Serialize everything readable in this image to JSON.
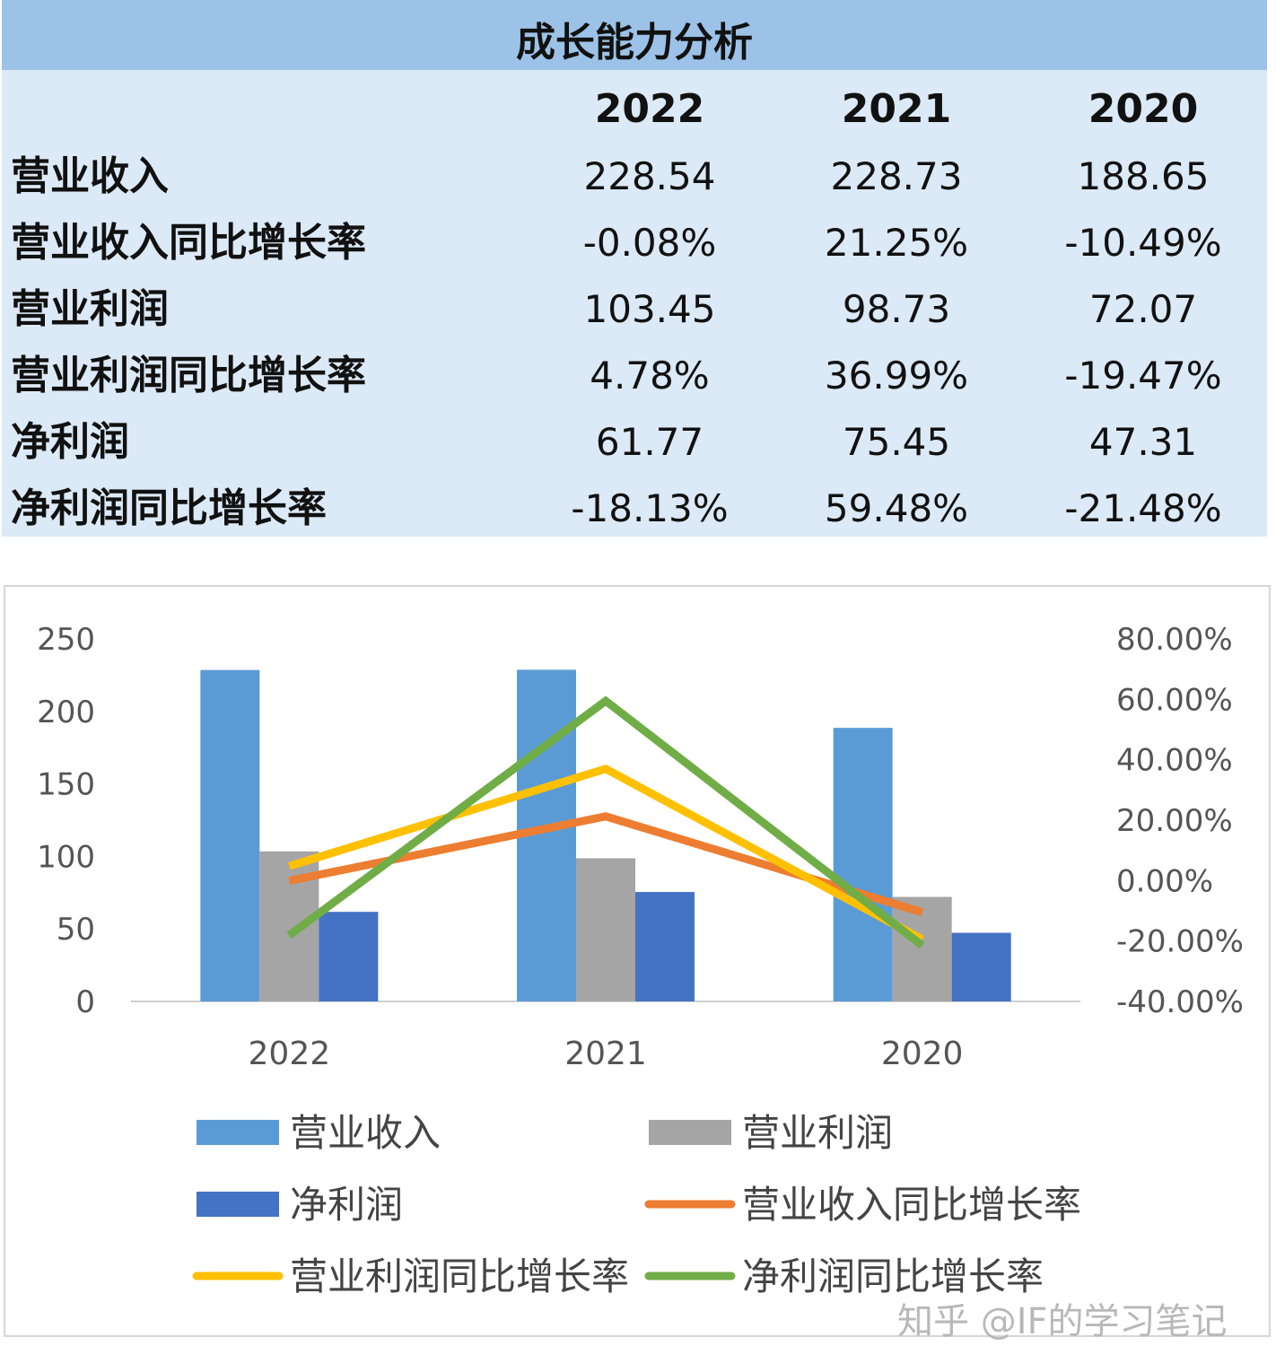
{
  "table": {
    "title": "成长能力分析",
    "years": [
      "2022",
      "2021",
      "2020"
    ],
    "rows": [
      {
        "label": "营业收入",
        "values": [
          "228.54",
          "228.73",
          "188.65"
        ]
      },
      {
        "label": "营业收入同比增长率",
        "values": [
          "-0.08%",
          "21.25%",
          "-10.49%"
        ]
      },
      {
        "label": "营业利润",
        "values": [
          "103.45",
          "98.73",
          "72.07"
        ]
      },
      {
        "label": "营业利润同比增长率",
        "values": [
          "4.78%",
          "36.99%",
          "-19.47%"
        ]
      },
      {
        "label": "净利润",
        "values": [
          "61.77",
          "75.45",
          "47.31"
        ]
      },
      {
        "label": "净利润同比增长率",
        "values": [
          "-18.13%",
          "59.48%",
          "-21.48%"
        ]
      }
    ]
  },
  "chart_data": {
    "type": "bar",
    "categories": [
      "2022",
      "2021",
      "2020"
    ],
    "ylim": [
      0,
      250
    ],
    "yticks": [
      "250",
      "200",
      "150",
      "100",
      "50",
      "0"
    ],
    "y2lim": [
      -40,
      80
    ],
    "y2ticks": [
      "80.00%",
      "60.00%",
      "40.00%",
      "20.00%",
      "0.00%",
      "-20.00%",
      "-40.00%"
    ],
    "grid": false,
    "legend_position": "bottom",
    "bar_series": [
      {
        "name": "营业收入",
        "values": [
          228.54,
          228.73,
          188.65
        ],
        "color": "#5b9bd5"
      },
      {
        "name": "营业利润",
        "values": [
          103.45,
          98.73,
          72.07
        ],
        "color": "#a5a5a5"
      },
      {
        "name": "净利润",
        "values": [
          61.77,
          75.45,
          47.31
        ],
        "color": "#4472c4"
      }
    ],
    "line_series": [
      {
        "name": "营业收入同比增长率",
        "values": [
          -0.08,
          21.25,
          -10.49
        ],
        "color": "#ed7d31"
      },
      {
        "name": "营业利润同比增长率",
        "values": [
          4.78,
          36.99,
          -19.47
        ],
        "color": "#ffc000"
      },
      {
        "name": "净利润同比增长率",
        "values": [
          -18.13,
          59.48,
          -21.48
        ],
        "color": "#70ad47"
      }
    ]
  },
  "watermark": "知乎 @IF的学习笔记"
}
